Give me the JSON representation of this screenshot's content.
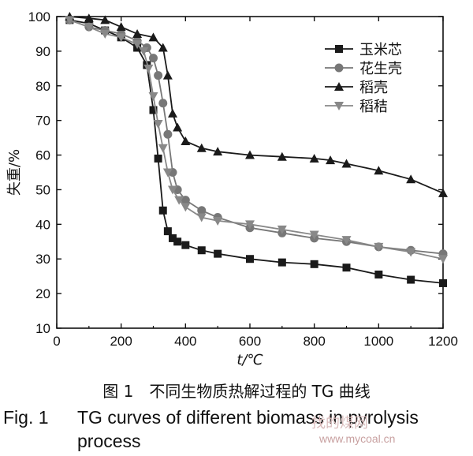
{
  "chart_data": {
    "type": "line",
    "xlabel": "t/℃",
    "ylabel": "失重/%",
    "xlim": [
      0,
      1200
    ],
    "ylim": [
      10,
      100
    ],
    "xticks": [
      0,
      200,
      400,
      600,
      800,
      1000,
      1200
    ],
    "yticks": [
      10,
      20,
      30,
      40,
      50,
      60,
      70,
      80,
      90,
      100
    ],
    "grid": false,
    "legend_position": "top-right",
    "series": [
      {
        "name": "玉米芯",
        "marker": "square",
        "color": "#1a1a1a",
        "x": [
          40,
          100,
          150,
          200,
          250,
          280,
          300,
          315,
          330,
          345,
          360,
          375,
          400,
          450,
          500,
          600,
          700,
          800,
          900,
          1000,
          1100,
          1200
        ],
        "y": [
          99,
          98,
          96,
          94,
          91,
          86,
          73,
          59,
          44,
          38,
          36,
          35,
          34,
          32.5,
          31.5,
          30,
          29,
          28.5,
          27.5,
          25.5,
          24,
          23
        ]
      },
      {
        "name": "花生壳",
        "marker": "circle",
        "color": "#777777",
        "x": [
          40,
          100,
          150,
          200,
          250,
          280,
          300,
          315,
          330,
          345,
          360,
          375,
          400,
          450,
          500,
          600,
          700,
          800,
          900,
          1000,
          1100,
          1200
        ],
        "y": [
          99,
          97,
          96,
          95,
          93,
          91,
          88,
          83,
          75,
          66,
          55,
          50,
          47,
          44,
          42,
          39,
          37.5,
          36,
          35,
          33.5,
          32.5,
          31.5
        ]
      },
      {
        "name": "稻壳",
        "marker": "triangle-up",
        "color": "#1a1a1a",
        "x": [
          40,
          100,
          150,
          200,
          250,
          300,
          330,
          345,
          360,
          375,
          400,
          450,
          500,
          600,
          700,
          800,
          850,
          900,
          1000,
          1100,
          1200
        ],
        "y": [
          100,
          99.5,
          99,
          97,
          95,
          94,
          91,
          83,
          72,
          68,
          64,
          62,
          61,
          60,
          59.5,
          59,
          58.5,
          57.5,
          55.5,
          53,
          49
        ]
      },
      {
        "name": "稻秸",
        "marker": "triangle-down",
        "color": "#888888",
        "x": [
          40,
          100,
          150,
          200,
          250,
          270,
          285,
          300,
          315,
          330,
          345,
          360,
          380,
          400,
          450,
          500,
          600,
          700,
          800,
          900,
          1000,
          1100,
          1200
        ],
        "y": [
          99,
          97,
          95,
          94,
          92,
          90,
          85,
          77,
          69,
          62,
          55,
          50,
          47,
          45,
          42,
          41,
          40,
          38.5,
          37,
          35.5,
          33.5,
          32,
          30
        ]
      }
    ]
  },
  "caption": {
    "cn": "图 1　不同生物质热解过程的 TG 曲线",
    "en_label": "Fig. 1",
    "en_line1": "TG curves of different biomass in pyrolysis",
    "en_line2": "process"
  },
  "watermark": {
    "text": "www.mycoal.cn",
    "text2": "找的煤网"
  }
}
